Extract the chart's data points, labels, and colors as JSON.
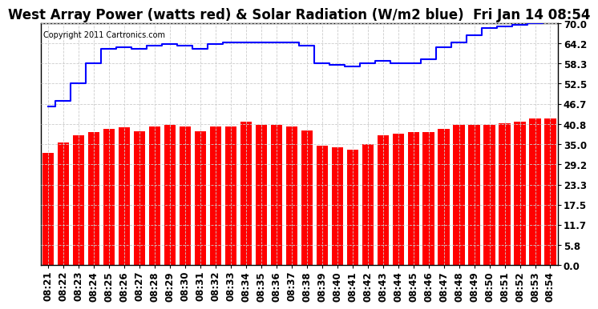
{
  "title": "West Array Power (watts red) & Solar Radiation (W/m2 blue)  Fri Jan 14 08:54",
  "copyright": "Copyright 2011 Cartronics.com",
  "x_labels": [
    "08:21",
    "08:22",
    "08:23",
    "08:24",
    "08:25",
    "08:26",
    "08:27",
    "08:28",
    "08:29",
    "08:30",
    "08:31",
    "08:32",
    "08:33",
    "08:34",
    "08:35",
    "08:36",
    "08:37",
    "08:38",
    "08:39",
    "08:40",
    "08:41",
    "08:42",
    "08:43",
    "08:44",
    "08:45",
    "08:46",
    "08:47",
    "08:48",
    "08:49",
    "08:50",
    "08:51",
    "08:52",
    "08:53",
    "08:54"
  ],
  "red_values": [
    32.5,
    35.5,
    37.5,
    38.5,
    39.5,
    39.8,
    38.8,
    40.2,
    40.5,
    40.0,
    38.8,
    40.0,
    40.0,
    41.5,
    40.5,
    40.5,
    40.0,
    39.0,
    34.5,
    34.0,
    33.5,
    35.0,
    37.5,
    38.0,
    38.5,
    38.5,
    39.5,
    40.5,
    40.5,
    40.5,
    41.0,
    41.5,
    42.5,
    42.5
  ],
  "blue_values": [
    46.0,
    47.5,
    52.5,
    58.5,
    62.5,
    63.0,
    62.5,
    63.5,
    64.0,
    63.5,
    62.5,
    64.0,
    64.5,
    64.5,
    64.5,
    64.5,
    64.5,
    63.5,
    58.5,
    58.0,
    57.5,
    58.5,
    59.0,
    58.5,
    58.5,
    59.5,
    63.0,
    64.5,
    66.5,
    68.5,
    69.0,
    69.5,
    70.0,
    70.5
  ],
  "y_ticks": [
    0.0,
    5.8,
    11.7,
    17.5,
    23.3,
    29.2,
    35.0,
    40.8,
    46.7,
    52.5,
    58.3,
    64.2,
    70.0
  ],
  "ylim": [
    0.0,
    70.0
  ],
  "red_color": "#ff0000",
  "blue_color": "#0000ff",
  "bg_color": "#ffffff",
  "grid_color_light": "#cccccc",
  "title_fontsize": 12,
  "tick_fontsize": 8.5,
  "copyright_fontsize": 7,
  "bar_width": 0.75
}
